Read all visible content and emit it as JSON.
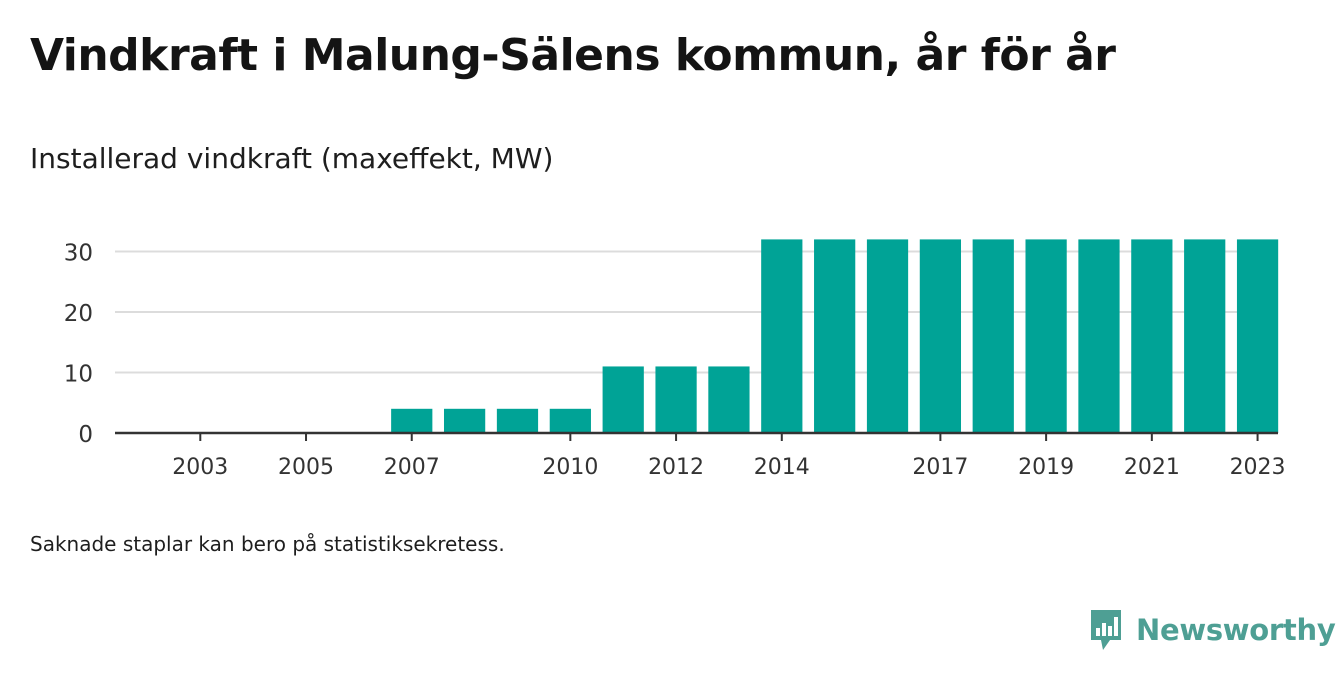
{
  "header": {
    "title": "Vindkraft i Malung-Sälens kommun, år för år",
    "subtitle": "Installerad vindkraft (maxeffekt, MW)"
  },
  "footer": {
    "note": "Saknade staplar kan bero på statistiksekretess.",
    "brand": "Newsworthy"
  },
  "colors": {
    "bar": "#00a396",
    "grid": "#dcdcdc",
    "axis": "#333333",
    "brand": "#4e9f94"
  },
  "icons": {
    "logo": "newsworthy-logo-icon"
  },
  "chart_data": {
    "type": "bar",
    "title": "Vindkraft i Malung-Sälens kommun, år för år",
    "subtitle": "Installerad vindkraft (maxeffekt, MW)",
    "xlabel": "",
    "ylabel": "",
    "categories": [
      "2002",
      "2003",
      "2004",
      "2005",
      "2006",
      "2007",
      "2008",
      "2009",
      "2010",
      "2011",
      "2012",
      "2013",
      "2014",
      "2015",
      "2016",
      "2017",
      "2018",
      "2019",
      "2020",
      "2021",
      "2022",
      "2023"
    ],
    "values": [
      0,
      0,
      0,
      0,
      0,
      4,
      4,
      4,
      4,
      11,
      11,
      11,
      32,
      32,
      32,
      32,
      32,
      32,
      32,
      32,
      32,
      32
    ],
    "x_tick_labels": [
      "2003",
      "2005",
      "2007",
      "2010",
      "2012",
      "2014",
      "2017",
      "2019",
      "2021",
      "2023"
    ],
    "y_ticks": [
      0,
      10,
      20,
      30
    ],
    "ylim": [
      0,
      33
    ],
    "grid": true,
    "legend": "none"
  }
}
